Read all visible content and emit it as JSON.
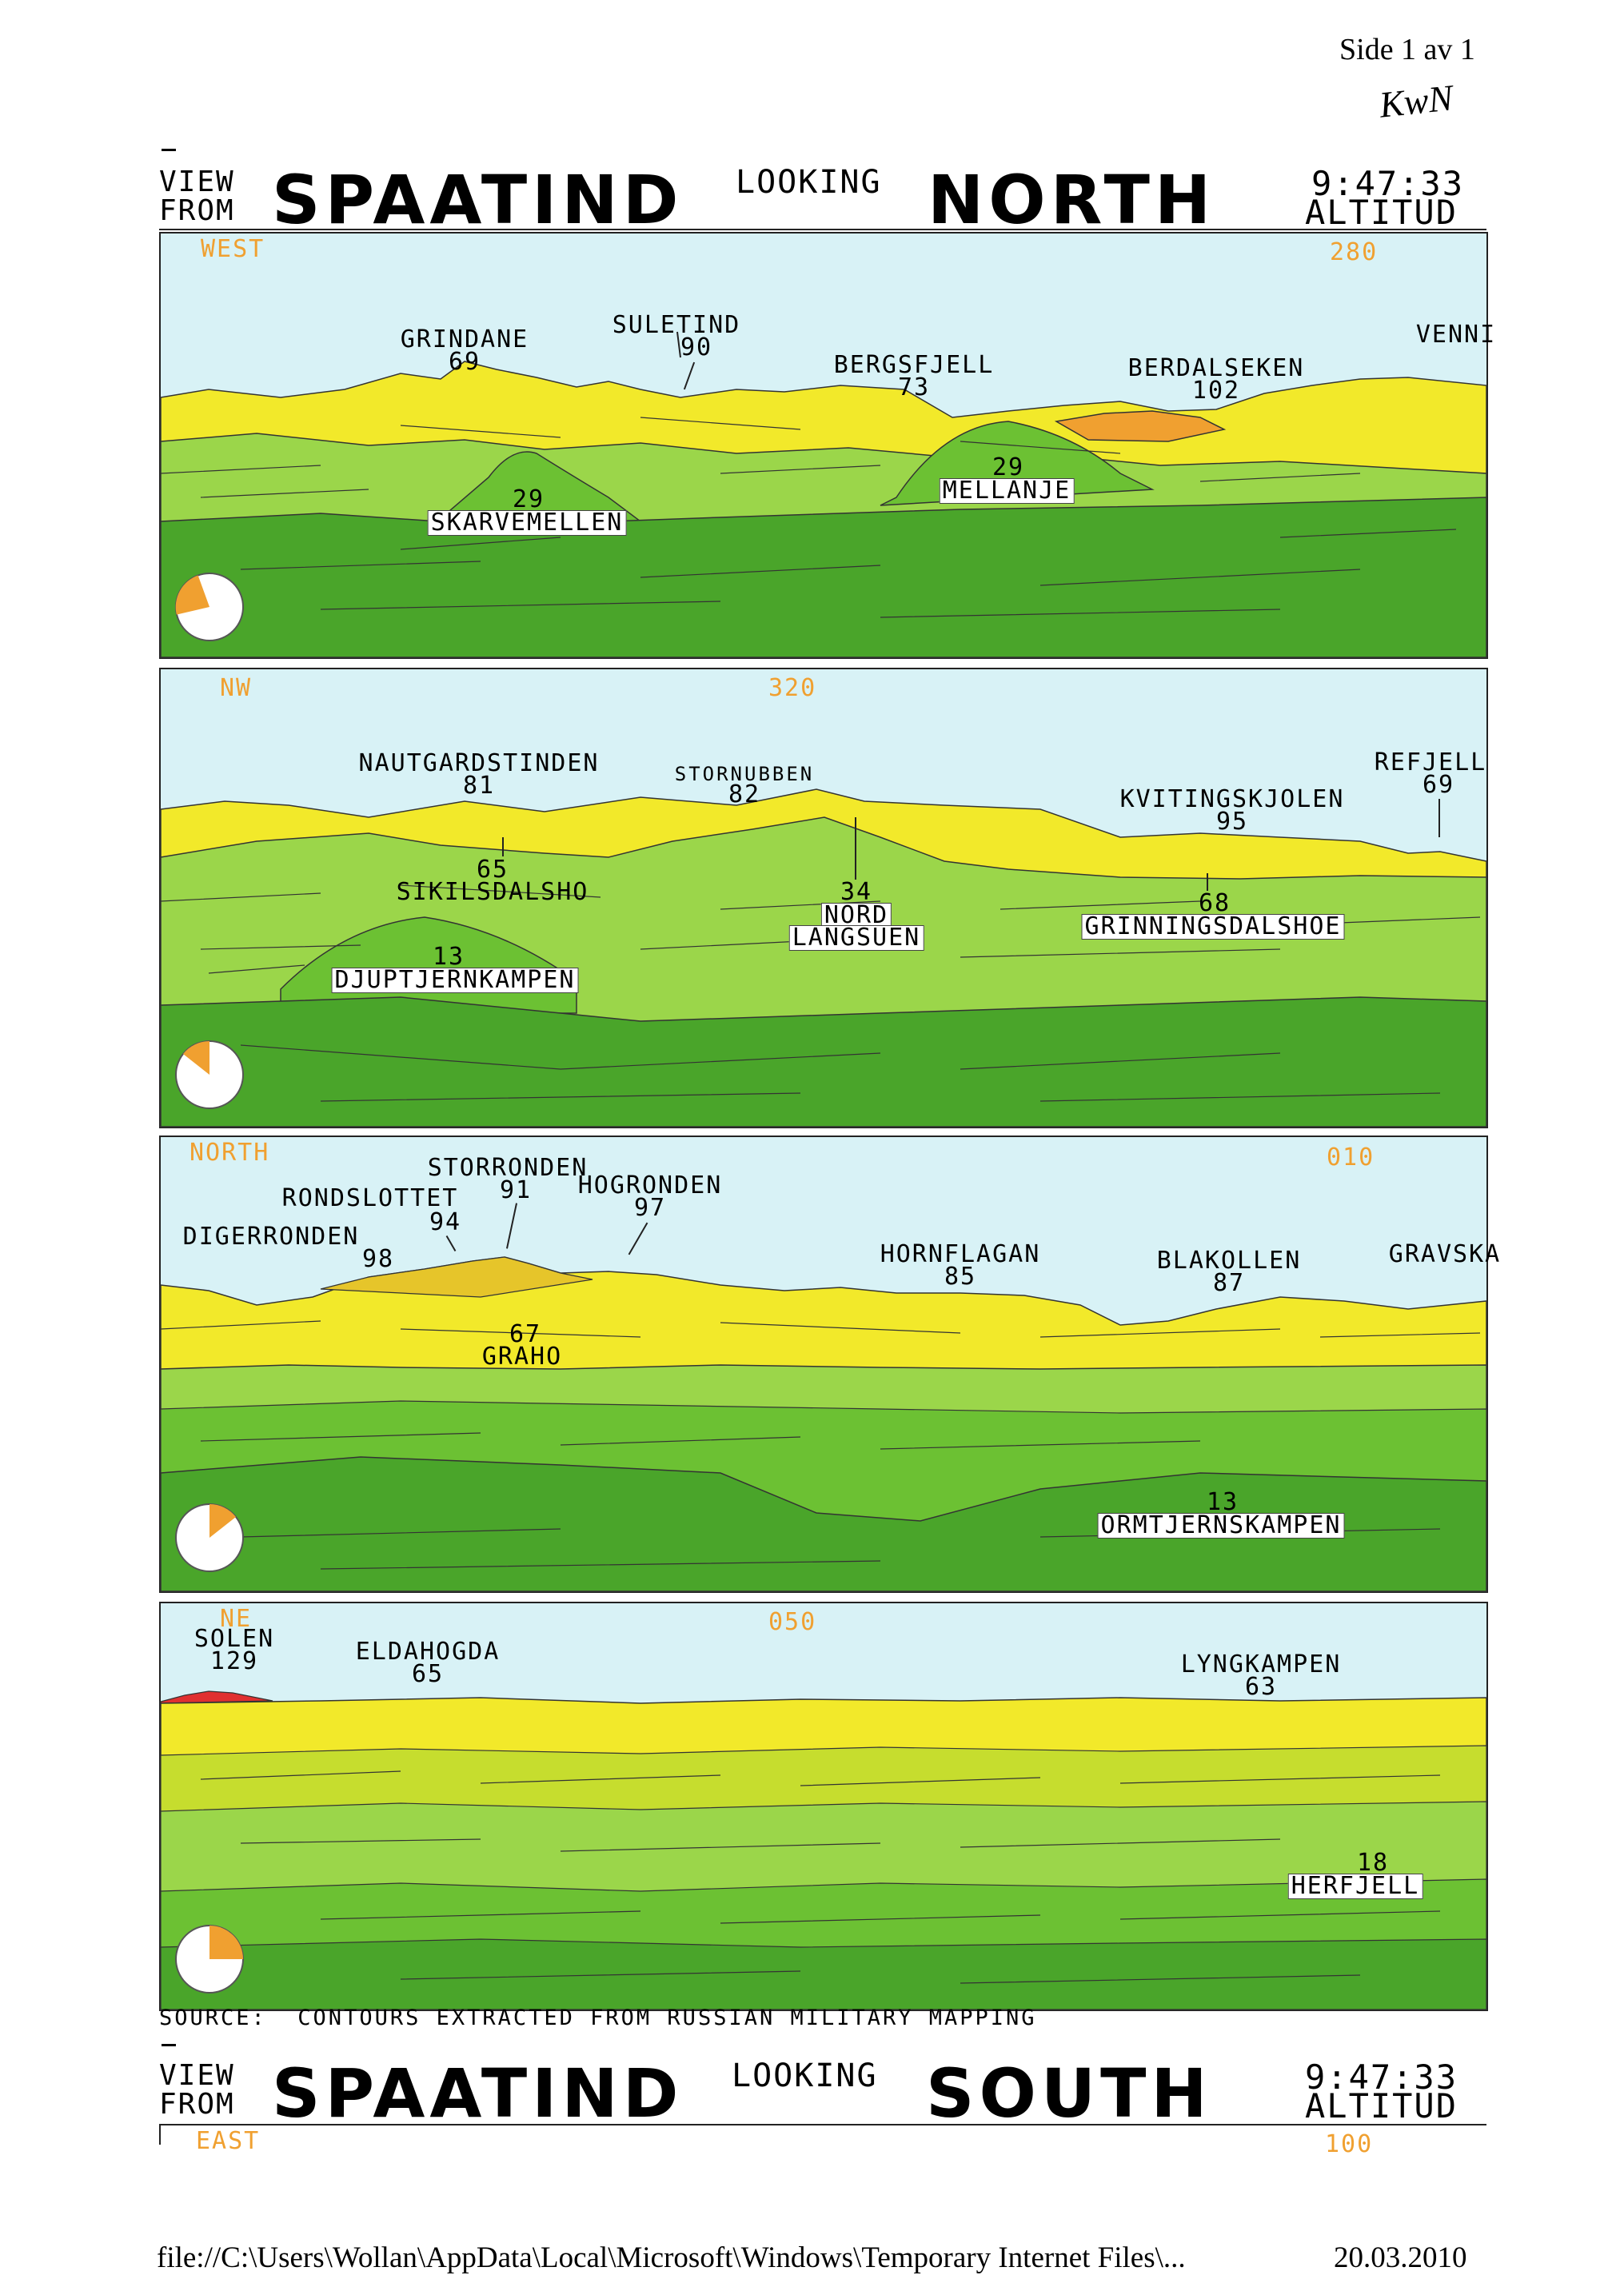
{
  "page": {
    "corner_label": "Side 1 av 1",
    "handwritten_note": "KwN",
    "footer_path": "file://C:\\Users\\Wollan\\AppData\\Local\\Microsoft\\Windows\\Temporary Internet Files\\...",
    "footer_date": "20.03.2010"
  },
  "header_north": {
    "view_line1": "VIEW",
    "view_line2": "FROM",
    "location": "SPAATIND",
    "looking": "LOOKING",
    "direction": "NORTH",
    "time": "9:47:33",
    "altitude_label": "ALTITUD"
  },
  "panels": [
    {
      "left_dir": "WEST",
      "center_dir": "280",
      "labels": {
        "grindane": "GRINDANE",
        "grindane_n": "69",
        "suletind": "SULETIND",
        "suletind_n": "90",
        "bergsfjell": "BERGSFJELL",
        "bergsfjell_n": "73",
        "berdalseken": "BERDALSEKEN",
        "berdalseken_n": "102",
        "venni": "VENNI",
        "mellanje": "MELLANJE",
        "mellanje_n": "29",
        "skarvemellen": "SKARVEMELLEN",
        "skarvemellen_n": "29"
      }
    },
    {
      "left_dir": "NW",
      "center_dir": "320",
      "labels": {
        "nautgardstinden": "NAUTGARDSTINDEN",
        "nautgardstinden_n": "81",
        "stornubben": "STORNUBBEN",
        "stornubben_n": "82",
        "refjell": "REFJELL",
        "refjell_n": "69",
        "kvitingskjolen": "KVITINGSKJOLEN",
        "kvitingskjolen_n": "95",
        "sikilsdalsho": "SIKILSDALSHO",
        "sikilsdalsho_n": "65",
        "nord_langsuen_1": "NORD",
        "nord_langsuen_2": "LANGSUEN",
        "nord_langsuen_n": "34",
        "grinningsdalshoe": "GRINNINGSDALSHOE",
        "grinningsdalshoe_n": "68",
        "djuptjernkampen": "DJUPTJERNKAMPEN",
        "djuptjernkampen_n": "13"
      }
    },
    {
      "left_dir": "NORTH",
      "center_dir": "010",
      "labels": {
        "storronden": "STORRONDEN",
        "storronden_n": "91",
        "rondslottet": "RONDSLOTTET",
        "rondslottet_n": "94",
        "hogronden": "HOGRONDEN",
        "hogronden_n": "97",
        "digerronden": "DIGERRONDEN",
        "digerronden_n": "98",
        "hornflagan": "HORNFLAGAN",
        "hornflagan_n": "85",
        "blakollen": "BLAKOLLEN",
        "blakollen_n": "87",
        "gravska": "GRAVSKA",
        "graho": "GRAHO",
        "graho_n": "67",
        "ormtjernskampen": "ORMTJERNSKAMPEN",
        "ormtjernskampen_n": "13"
      }
    },
    {
      "left_dir": "NE",
      "center_dir": "050",
      "labels": {
        "solen": "SOLEN",
        "solen_n": "129",
        "eldahogda": "ELDAHOGDA",
        "eldahogda_n": "65",
        "lyngkampen": "LYNGKAMPEN",
        "lyngkampen_n": "63",
        "herfjell": "HERFJELL",
        "herfjell_n": "18"
      }
    }
  ],
  "source_line": "SOURCE:  CONTOURS EXTRACTED FROM RUSSIAN MILITARY MAPPING",
  "header_south": {
    "view_line1": "VIEW",
    "view_line2": "FROM",
    "location": "SPAATIND",
    "looking": "LOOKING",
    "direction": "SOUTH",
    "time": "9:47:33",
    "altitude_label": "ALTITUD",
    "left_dir": "EAST",
    "center_dir": "100"
  },
  "colors": {
    "sky": "#d8f2f6",
    "yellow": "#f2e92a",
    "yellow_dark": "#d8cf1c",
    "orange": "#f0a030",
    "green_light": "#9bd64a",
    "green": "#6cc133",
    "green_dark": "#4aa52a",
    "sun": "#e03030"
  }
}
